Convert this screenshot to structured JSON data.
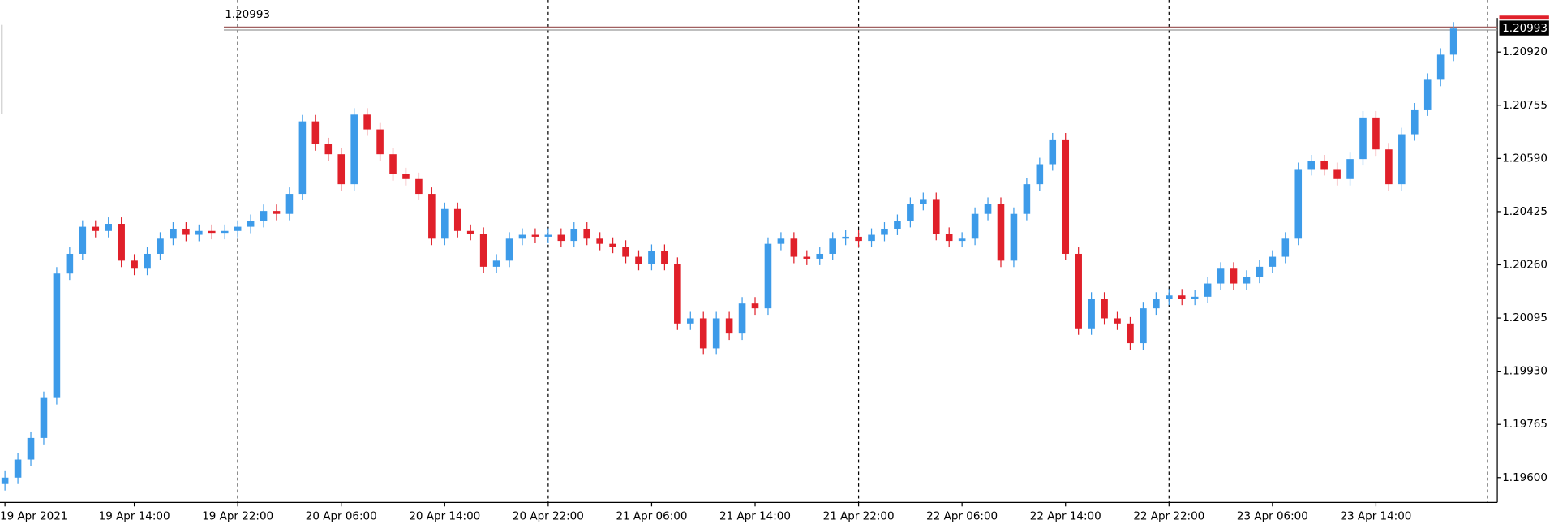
{
  "chart_data": {
    "type": "candlestick",
    "current_price": 1.20993,
    "up_color": "#3d9be9",
    "down_color": "#e0202a",
    "categories": [
      "19 Apr 2021",
      null,
      null,
      null,
      null,
      null,
      null,
      null,
      null,
      null,
      "19 Apr 14:00",
      null,
      null,
      null,
      null,
      null,
      null,
      null,
      "19 Apr 22:00",
      null,
      null,
      null,
      null,
      null,
      null,
      null,
      "20 Apr 06:00",
      null,
      null,
      null,
      null,
      null,
      null,
      null,
      "20 Apr 14:00",
      null,
      null,
      null,
      null,
      null,
      null,
      null,
      "20 Apr 22:00",
      null,
      null,
      null,
      null,
      null,
      null,
      null,
      "21 Apr 06:00",
      null,
      null,
      null,
      null,
      null,
      null,
      null,
      "21 Apr 14:00",
      null,
      null,
      null,
      null,
      null,
      null,
      null,
      "21 Apr 22:00",
      null,
      null,
      null,
      null,
      null,
      null,
      null,
      "22 Apr 06:00",
      null,
      null,
      null,
      null,
      null,
      null,
      null,
      "22 Apr 14:00",
      null,
      null,
      null,
      null,
      null,
      null,
      null,
      "22 Apr 22:00",
      null,
      null,
      null,
      null,
      null,
      null,
      null,
      "23 Apr 06:00",
      null,
      null,
      null,
      null,
      null,
      null,
      null,
      "23 Apr 14:00",
      null,
      null,
      null,
      null,
      null,
      null
    ],
    "open": [
      1.1958,
      1.196,
      1.19656,
      1.19723,
      1.19847,
      1.20233,
      1.20294,
      1.20378,
      1.20365,
      1.20387,
      1.20273,
      1.20248,
      1.20294,
      1.20341,
      1.20372,
      1.20353,
      1.20365,
      1.20359,
      1.20365,
      1.20378,
      1.20396,
      1.20427,
      1.20418,
      1.2048,
      1.20705,
      1.20634,
      1.20603,
      1.2051,
      1.20726,
      1.2068,
      1.20603,
      1.20541,
      1.20526,
      1.2048,
      1.20341,
      1.20433,
      1.20365,
      1.20356,
      1.20254,
      1.20273,
      1.20341,
      1.20353,
      1.20347,
      1.20353,
      1.20334,
      1.20372,
      1.20341,
      1.20325,
      1.20316,
      1.20285,
      1.20263,
      1.20303,
      1.20263,
      1.20078,
      1.20094,
      1.20001,
      1.20094,
      1.20047,
      1.2014,
      1.20125,
      1.20325,
      1.20341,
      1.20285,
      1.20279,
      1.20294,
      1.20341,
      1.20347,
      1.20334,
      1.20353,
      1.20372,
      1.20396,
      1.20449,
      1.20464,
      1.20356,
      1.20334,
      1.20341,
      1.20418,
      1.20449,
      1.20273,
      1.20418,
      1.2051,
      1.20572,
      1.20649,
      1.20294,
      1.20063,
      1.20155,
      1.20094,
      1.20078,
      1.20017,
      1.20125,
      1.20155,
      1.20165,
      1.20155,
      1.20161,
      1.20202,
      1.20248,
      1.20202,
      1.20223,
      1.20254,
      1.20285,
      1.20341,
      1.20557,
      1.20581,
      1.20557,
      1.20526,
      1.20588,
      1.20717,
      1.20618,
      1.2051,
      1.20665,
      1.20742,
      1.20834,
      1.20912
    ],
    "high": [
      1.1962,
      1.19676,
      1.19743,
      1.19867,
      1.20253,
      1.20314,
      1.20398,
      1.20398,
      1.20407,
      1.20407,
      1.20293,
      1.20314,
      1.20361,
      1.20392,
      1.20392,
      1.20385,
      1.20385,
      1.20385,
      1.20398,
      1.20416,
      1.20447,
      1.20447,
      1.205,
      1.20725,
      1.20725,
      1.20654,
      1.20623,
      1.20746,
      1.20746,
      1.207,
      1.20623,
      1.20561,
      1.20546,
      1.205,
      1.20453,
      1.20453,
      1.20385,
      1.20376,
      1.20293,
      1.20361,
      1.20373,
      1.20373,
      1.20373,
      1.20373,
      1.20392,
      1.20392,
      1.20361,
      1.20345,
      1.20336,
      1.20305,
      1.20323,
      1.20323,
      1.20283,
      1.20114,
      1.20114,
      1.20114,
      1.20114,
      1.2016,
      1.2016,
      1.20345,
      1.20361,
      1.20361,
      1.20305,
      1.20314,
      1.20361,
      1.20367,
      1.20367,
      1.20373,
      1.20392,
      1.20416,
      1.20469,
      1.20484,
      1.20484,
      1.20376,
      1.20361,
      1.20438,
      1.20469,
      1.20469,
      1.20438,
      1.2053,
      1.20592,
      1.20669,
      1.20669,
      1.20314,
      1.20175,
      1.20175,
      1.20114,
      1.20098,
      1.20145,
      1.20175,
      1.20185,
      1.20185,
      1.20181,
      1.20222,
      1.20268,
      1.20268,
      1.20243,
      1.20274,
      1.20305,
      1.20361,
      1.20577,
      1.20601,
      1.20601,
      1.20577,
      1.20608,
      1.20737,
      1.20737,
      1.20638,
      1.20685,
      1.20762,
      1.20854,
      1.20932,
      1.21013
    ],
    "low": [
      1.1956,
      1.1958,
      1.19636,
      1.19703,
      1.19827,
      1.20213,
      1.20274,
      1.20345,
      1.20345,
      1.20253,
      1.20228,
      1.20228,
      1.20274,
      1.20321,
      1.20333,
      1.20333,
      1.20339,
      1.20339,
      1.20345,
      1.20358,
      1.20376,
      1.20398,
      1.20398,
      1.2046,
      1.20614,
      1.20583,
      1.2049,
      1.2049,
      1.2066,
      1.20583,
      1.20521,
      1.20506,
      1.2046,
      1.20321,
      1.20321,
      1.20345,
      1.20336,
      1.20234,
      1.20234,
      1.20253,
      1.20321,
      1.20327,
      1.20327,
      1.20314,
      1.20314,
      1.20321,
      1.20305,
      1.20296,
      1.20265,
      1.20243,
      1.20243,
      1.20243,
      1.20058,
      1.20058,
      1.19981,
      1.19981,
      1.20027,
      1.20027,
      1.20105,
      1.20105,
      1.20305,
      1.20265,
      1.20259,
      1.20259,
      1.20274,
      1.20321,
      1.20314,
      1.20314,
      1.20333,
      1.20352,
      1.20376,
      1.20429,
      1.20336,
      1.20314,
      1.20314,
      1.20321,
      1.20398,
      1.20253,
      1.20253,
      1.20398,
      1.2049,
      1.20552,
      1.20274,
      1.20043,
      1.20043,
      1.20074,
      1.20058,
      1.19997,
      1.19997,
      1.20105,
      1.20135,
      1.20135,
      1.20135,
      1.20141,
      1.20182,
      1.20182,
      1.20182,
      1.20203,
      1.20234,
      1.20265,
      1.20321,
      1.20537,
      1.20537,
      1.20506,
      1.20506,
      1.20568,
      1.20598,
      1.2049,
      1.2049,
      1.20645,
      1.20722,
      1.20814,
      1.20892
    ],
    "close": [
      1.196,
      1.19656,
      1.19723,
      1.19847,
      1.20233,
      1.20294,
      1.20378,
      1.20365,
      1.20387,
      1.20273,
      1.20248,
      1.20294,
      1.20341,
      1.20372,
      1.20353,
      1.20365,
      1.20359,
      1.20365,
      1.20378,
      1.20396,
      1.20427,
      1.20418,
      1.2048,
      1.20705,
      1.20634,
      1.20603,
      1.2051,
      1.20726,
      1.2068,
      1.20603,
      1.20541,
      1.20526,
      1.2048,
      1.20341,
      1.20433,
      1.20365,
      1.20356,
      1.20254,
      1.20273,
      1.20341,
      1.20353,
      1.20347,
      1.20353,
      1.20334,
      1.20372,
      1.20341,
      1.20325,
      1.20316,
      1.20285,
      1.20263,
      1.20303,
      1.20263,
      1.20078,
      1.20094,
      1.20001,
      1.20094,
      1.20047,
      1.2014,
      1.20125,
      1.20325,
      1.20341,
      1.20285,
      1.20279,
      1.20294,
      1.20341,
      1.20347,
      1.20334,
      1.20353,
      1.20372,
      1.20396,
      1.20449,
      1.20464,
      1.20356,
      1.20334,
      1.20341,
      1.20418,
      1.20449,
      1.20273,
      1.20418,
      1.2051,
      1.20572,
      1.20649,
      1.20294,
      1.20063,
      1.20155,
      1.20094,
      1.20078,
      1.20017,
      1.20125,
      1.20155,
      1.20165,
      1.20155,
      1.20161,
      1.20202,
      1.20248,
      1.20202,
      1.20223,
      1.20254,
      1.20285,
      1.20341,
      1.20557,
      1.20581,
      1.20557,
      1.20526,
      1.20588,
      1.20717,
      1.20618,
      1.2051,
      1.20665,
      1.20742,
      1.20834,
      1.20912,
      1.20993
    ],
    "ylim": [
      1.19523,
      1.21026
    ],
    "yticks": [
      {
        "value": 1.196,
        "label": "1.19600"
      },
      1.19765,
      {
        "value": 1.1993,
        "label": "1.19930"
      },
      1.20095,
      {
        "value": 1.2026,
        "label": "1.20260"
      },
      1.20425,
      {
        "value": 1.2059,
        "label": "1.20590"
      },
      1.20755,
      {
        "value": 1.2092,
        "label": "1.20920"
      }
    ]
  }
}
